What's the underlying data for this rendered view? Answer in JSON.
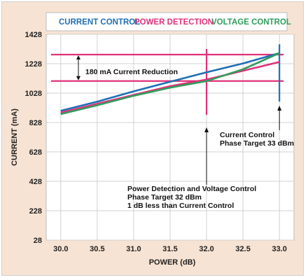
{
  "chart_data": {
    "type": "line",
    "legend": {
      "placement": "top",
      "entries": [
        {
          "label": "CURRENT CONTROL",
          "color": "#1f6fb5"
        },
        {
          "label": "POWER DETECTION",
          "color": "#e0317a"
        },
        {
          "label": "VOLTAGE CONTROL",
          "color": "#2f9e5a"
        }
      ]
    },
    "xlabel": "POWER (dB)",
    "ylabel": "CURRENT (mA)",
    "xlim": [
      29.8,
      33.2
    ],
    "ylim": [
      28,
      1428
    ],
    "x_ticks": [
      "30.0",
      "30.5",
      "31.0",
      "31.5",
      "32.0",
      "32.5",
      "33.0"
    ],
    "y_ticks": [
      "1428",
      "1228",
      "1028",
      "828",
      "628",
      "428",
      "228",
      "28"
    ],
    "grid": true,
    "series": [
      {
        "name": "CURRENT CONTROL",
        "color": "#1f6fb5",
        "x": [
          30.0,
          30.5,
          31.0,
          31.5,
          32.0,
          32.5,
          33.0
        ],
        "y": [
          908,
          970,
          1040,
          1105,
          1170,
          1230,
          1300
        ]
      },
      {
        "name": "POWER DETECTION",
        "color": "#e0317a",
        "x": [
          30.0,
          30.5,
          31.0,
          31.5,
          32.0,
          32.5,
          33.0
        ],
        "y": [
          895,
          955,
          1015,
          1075,
          1120,
          1180,
          1240
        ]
      },
      {
        "name": "VOLTAGE CONTROL",
        "color": "#2f9e5a",
        "x": [
          30.0,
          30.5,
          31.0,
          31.5,
          32.0,
          32.5,
          33.0
        ],
        "y": [
          885,
          945,
          1010,
          1065,
          1110,
          1190,
          1300
        ]
      }
    ],
    "reference_lines": [
      {
        "orientation": "horizontal",
        "value": 1290,
        "color": "#e0317a"
      },
      {
        "orientation": "horizontal",
        "value": 1110,
        "color": "#e0317a"
      },
      {
        "orientation": "vertical",
        "value": 32.0,
        "range": [
          880,
          1328
        ],
        "color": "#e0317a"
      },
      {
        "orientation": "vertical",
        "value": 33.0,
        "range": [
          970,
          1360
        ],
        "color": "#1f6fb5"
      }
    ],
    "annotations": [
      {
        "lines": [
          "180 mA Current Reduction"
        ]
      },
      {
        "lines": [
          "Current Control",
          "Phase Target 33 dBm"
        ]
      },
      {
        "lines": [
          "Power Detection and Voltage Control",
          "Phase Target 32 dBm",
          "1 dB less than Current Control"
        ]
      }
    ]
  }
}
